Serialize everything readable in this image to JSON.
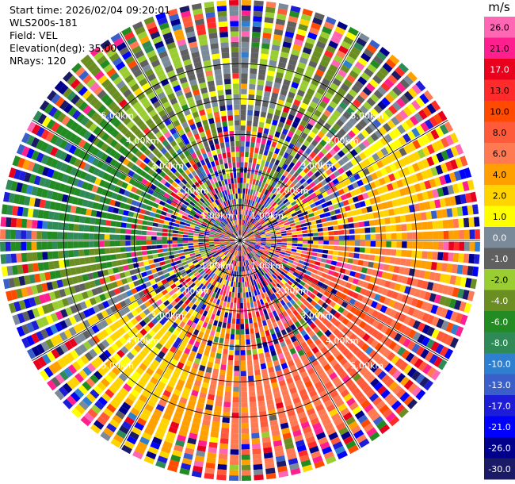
{
  "header": {
    "start_time": "Start time: 2026/02/04 09:20:01",
    "instrument": "WLS200s-181",
    "field": "Field: VEL",
    "elevation": "Elevation(deg): 35.00",
    "nrays": "NRays: 120"
  },
  "colorbar": {
    "unit": "m/s",
    "bins": [
      {
        "label": "26.0",
        "color": "#ff66b3"
      },
      {
        "label": "21.0",
        "color": "#ff1f8f"
      },
      {
        "label": "17.0",
        "color": "#e8001d"
      },
      {
        "label": "13.0",
        "color": "#ff2a2a"
      },
      {
        "label": "10.0",
        "color": "#ff4a00"
      },
      {
        "label": "8.0",
        "color": "#ff5a3a"
      },
      {
        "label": "6.0",
        "color": "#ff7a52"
      },
      {
        "label": "4.0",
        "color": "#ffa000"
      },
      {
        "label": "2.0",
        "color": "#ffd400"
      },
      {
        "label": "1.0",
        "color": "#ffff00"
      },
      {
        "label": "0.0",
        "color": "#7a8a99"
      },
      {
        "label": "-1.0",
        "color": "#606060"
      },
      {
        "label": "-2.0",
        "color": "#9acd32"
      },
      {
        "label": "-4.0",
        "color": "#6b8e23"
      },
      {
        "label": "-6.0",
        "color": "#228b22"
      },
      {
        "label": "-8.0",
        "color": "#2e8b57"
      },
      {
        "label": "-10.0",
        "color": "#2f7fd0"
      },
      {
        "label": "-13.0",
        "color": "#3a5fc8"
      },
      {
        "label": "-17.0",
        "color": "#1d1dd8"
      },
      {
        "label": "-21.0",
        "color": "#0000ff"
      },
      {
        "label": "-26.0",
        "color": "#00008b"
      },
      {
        "label": "-30.0",
        "color": "#1a1a66"
      }
    ]
  },
  "chart_data": {
    "type": "heatmap",
    "title": "",
    "field": "VEL",
    "units": "m/s",
    "elevation_deg": 35.0,
    "n_rays": 120,
    "range_rings": [
      "1.00km",
      "2.00km",
      "3.00km",
      "4.00km",
      "5.00km"
    ],
    "range_ring_values_km": [
      1.0,
      2.0,
      3.0,
      4.0,
      5.0
    ],
    "max_range_km": 6.8,
    "azimuth_lines_deg": [
      0,
      30,
      60,
      90,
      120,
      150,
      180,
      210,
      240,
      270,
      300,
      330
    ],
    "velocity_sectors_m_s": [
      {
        "azimuth_deg": 0,
        "velocity": 0.0
      },
      {
        "azimuth_deg": 30,
        "velocity": -2.0
      },
      {
        "azimuth_deg": 60,
        "velocity": 2.0
      },
      {
        "azimuth_deg": 90,
        "velocity": 5.0
      },
      {
        "azimuth_deg": 120,
        "velocity": 9.0
      },
      {
        "azimuth_deg": 150,
        "velocity": 8.0
      },
      {
        "azimuth_deg": 180,
        "velocity": 7.0
      },
      {
        "azimuth_deg": 210,
        "velocity": 3.5
      },
      {
        "azimuth_deg": 240,
        "velocity": 1.5
      },
      {
        "azimuth_deg": 270,
        "velocity": -6.0
      },
      {
        "azimuth_deg": 300,
        "velocity": -5.0
      },
      {
        "azimuth_deg": 330,
        "velocity": -1.5
      }
    ]
  }
}
